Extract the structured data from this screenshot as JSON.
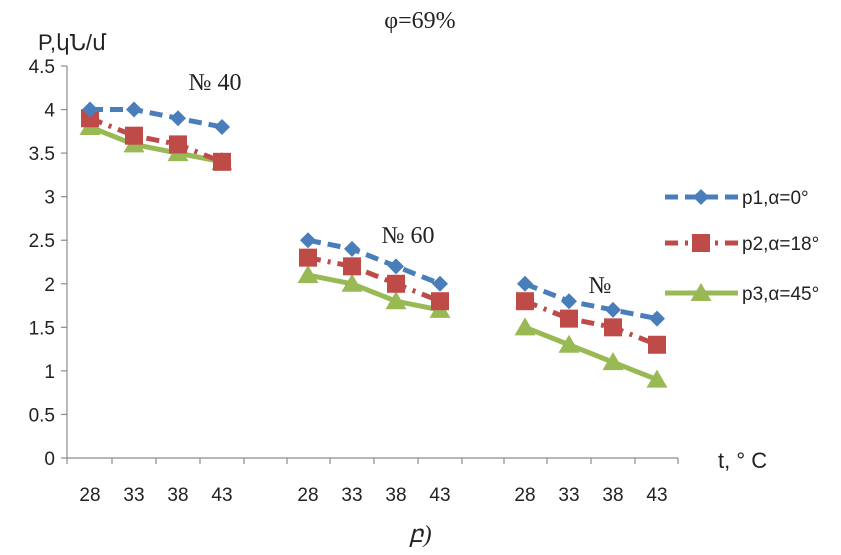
{
  "chart_data": {
    "type": "line",
    "title": "φ=69%",
    "ylabel": "P,կՆ/մ",
    "xlabel": "t, ° C",
    "caption": "բ)",
    "ylim": [
      0,
      4.5
    ],
    "yticks": [
      "0",
      "0.5",
      "1",
      "1.5",
      "2",
      "2.5",
      "3",
      "3.5",
      "4",
      "4.5"
    ],
    "groups": [
      {
        "label": "№ 40",
        "categories": [
          "28",
          "33",
          "38",
          "43"
        ]
      },
      {
        "label": "№ 60",
        "categories": [
          "28",
          "33",
          "38",
          "43"
        ]
      },
      {
        "label": "№",
        "categories": [
          "28",
          "33",
          "38",
          "43"
        ]
      }
    ],
    "series": [
      {
        "name": "p1,α=0°",
        "color": "#4a7ebb",
        "marker": "diamond",
        "dash": "dashed",
        "values": [
          [
            4.0,
            4.0,
            3.9,
            3.8
          ],
          [
            2.5,
            2.4,
            2.2,
            2.0
          ],
          [
            2.0,
            1.8,
            1.7,
            1.6
          ]
        ]
      },
      {
        "name": "p2,α=18°",
        "color": "#be4b48",
        "marker": "square",
        "dash": "dashdot",
        "values": [
          [
            3.9,
            3.7,
            3.6,
            3.4
          ],
          [
            2.3,
            2.2,
            2.0,
            1.8
          ],
          [
            1.8,
            1.6,
            1.5,
            1.3
          ]
        ]
      },
      {
        "name": "p3,α=45°",
        "color": "#98b954",
        "marker": "triangle",
        "dash": "solid",
        "values": [
          [
            3.8,
            3.6,
            3.5,
            3.4
          ],
          [
            2.1,
            2.0,
            1.8,
            1.7
          ],
          [
            1.5,
            1.3,
            1.1,
            0.9
          ]
        ]
      }
    ],
    "legend": "right",
    "grid": false
  }
}
